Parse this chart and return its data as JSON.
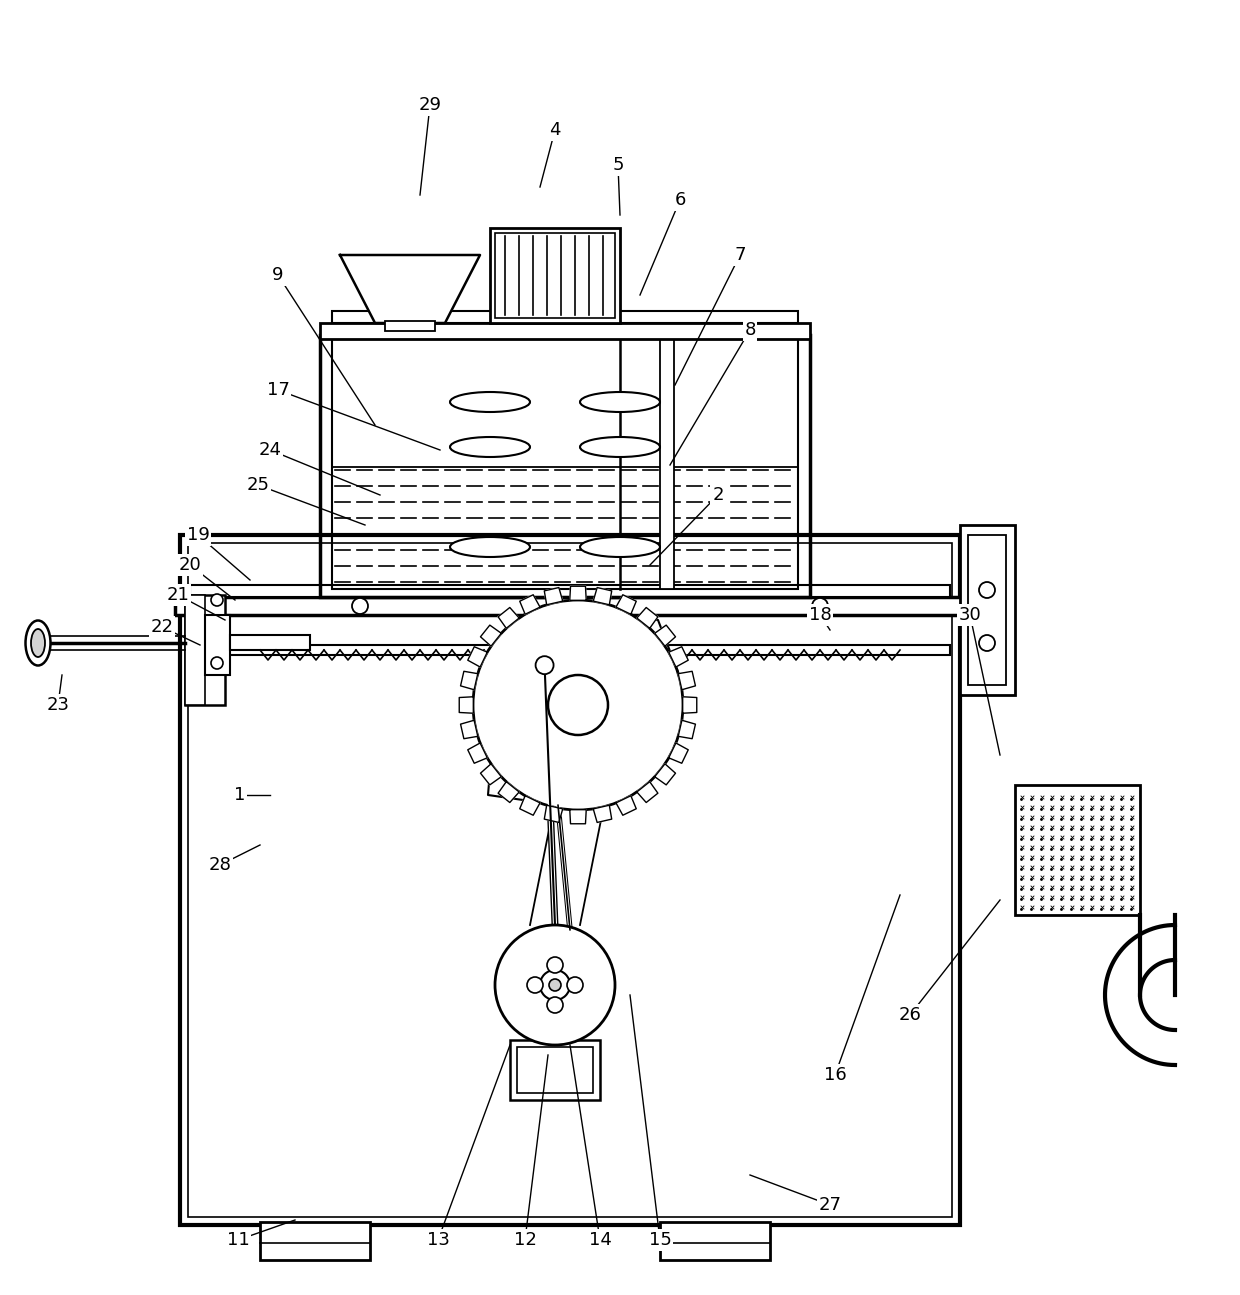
{
  "bg_color": "#ffffff",
  "line_color": "#000000",
  "label_fontsize": 13,
  "fig_width": 12.4,
  "fig_height": 12.95
}
